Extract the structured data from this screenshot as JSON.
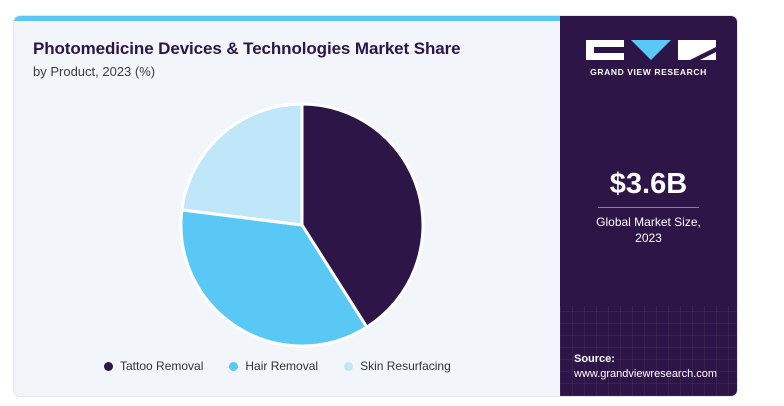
{
  "header": {
    "title": "Photomedicine Devices & Technologies Market Share",
    "subtitle": "by Product, 2023 (%)"
  },
  "chart_data": {
    "type": "pie",
    "title": "Photomedicine Devices & Technologies Market Share",
    "subtitle": "by Product, 2023 (%)",
    "categories": [
      "Tattoo Removal",
      "Hair Removal",
      "Skin Resurfacing"
    ],
    "values": [
      41,
      36,
      23
    ],
    "colors": [
      "#2e1547",
      "#5ac8f5",
      "#bfe6f9"
    ],
    "legend_position": "bottom"
  },
  "legend": [
    {
      "label": "Tattoo Removal",
      "color": "#2e1547"
    },
    {
      "label": "Hair Removal",
      "color": "#5ac8f5"
    },
    {
      "label": "Skin Resurfacing",
      "color": "#bfe6f9"
    }
  ],
  "sidebar": {
    "logo_icon": "grand-view-research-logo",
    "brand": "GRAND VIEW RESEARCH",
    "market_value": "$3.6B",
    "market_caption_line1": "Global Market Size,",
    "market_caption_line2": "2023",
    "source_label": "Source:",
    "source_url": "www.grandviewresearch.com"
  },
  "colors": {
    "sidebar_bg": "#2e1547",
    "accent": "#5ac8f5",
    "panel_bg": "#f2f6fa"
  }
}
